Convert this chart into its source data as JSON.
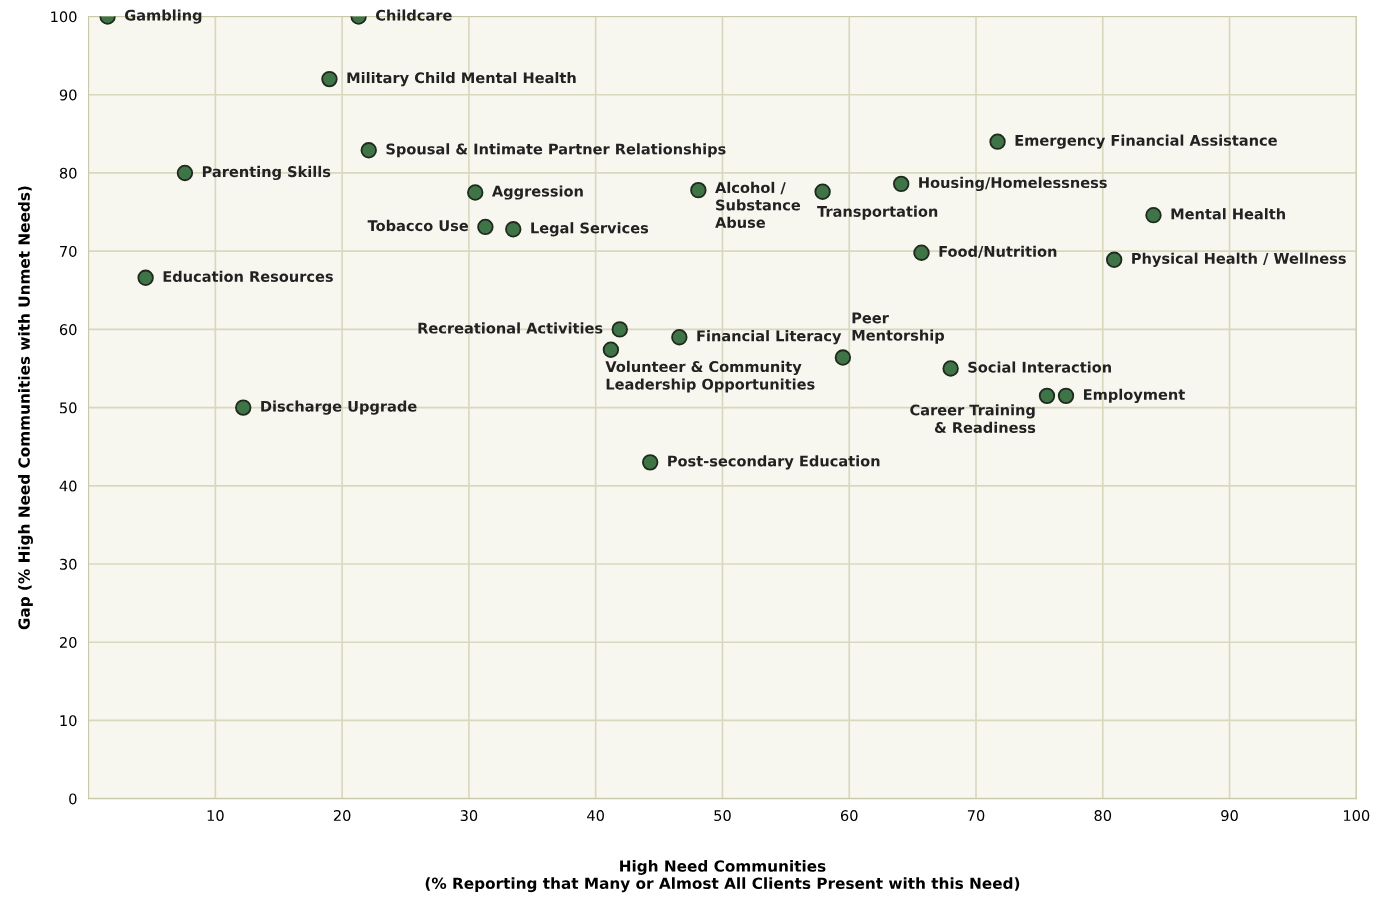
{
  "chart_data": {
    "type": "scatter",
    "xlabel": "High Need Communities\n(% Reporting that Many or Almost All Clients Present with this Need)",
    "ylabel": "Gap (% High Need Communities with Unmet Needs)",
    "x": [
      1.5,
      21.3,
      19.0,
      22.1,
      7.6,
      30.5,
      31.3,
      33.5,
      4.5,
      48.1,
      57.9,
      64.1,
      71.7,
      84.0,
      65.7,
      80.9,
      41.9,
      46.6,
      41.2,
      59.5,
      68.0,
      75.6,
      77.1,
      12.2,
      44.3
    ],
    "series": [
      {
        "color": "#3f7446",
        "values": [
          100,
          100,
          92,
          82.9,
          80,
          77.5,
          73.1,
          72.8,
          66.6,
          77.8,
          77.6,
          78.6,
          84,
          74.6,
          69.8,
          68.9,
          60,
          59,
          57.4,
          56.4,
          55,
          51.5,
          51.5,
          50,
          43
        ]
      }
    ],
    "annotations": [
      {
        "text": "Gambling",
        "x": 1.5,
        "y": 100
      },
      {
        "text": "Childcare",
        "x": 21.3,
        "y": 100
      },
      {
        "text": "Military Child Mental Health",
        "x": 19.0,
        "y": 92
      },
      {
        "text": "Spousal & Intimate Partner Relationships",
        "x": 22.1,
        "y": 82.9
      },
      {
        "text": "Parenting Skills",
        "x": 7.6,
        "y": 80
      },
      {
        "text": "Aggression",
        "x": 30.5,
        "y": 77.5
      },
      {
        "text": "Tobacco Use",
        "x": 31.3,
        "y": 73.1
      },
      {
        "text": "Legal Services",
        "x": 33.5,
        "y": 72.8
      },
      {
        "text": "Education Resources",
        "x": 4.5,
        "y": 66.6
      },
      {
        "text": "Alcohol /\nSubstance\nAbuse",
        "x": 48.1,
        "y": 77.8
      },
      {
        "text": "Transportation",
        "x": 57.9,
        "y": 77.6
      },
      {
        "text": "Housing/Homelessness",
        "x": 64.1,
        "y": 78.6
      },
      {
        "text": "Emergency Financial Assistance",
        "x": 71.7,
        "y": 84
      },
      {
        "text": "Mental Health",
        "x": 84.0,
        "y": 74.6
      },
      {
        "text": "Food/Nutrition",
        "x": 65.7,
        "y": 69.8
      },
      {
        "text": "Physical Health / Wellness",
        "x": 80.9,
        "y": 68.9
      },
      {
        "text": "Recreational Activities",
        "x": 41.9,
        "y": 60
      },
      {
        "text": "Financial Literacy",
        "x": 46.6,
        "y": 59
      },
      {
        "text": "Volunteer & Community\nLeadership Opportunities",
        "x": 41.2,
        "y": 57.4
      },
      {
        "text": "Peer\nMentorship",
        "x": 59.5,
        "y": 56.4
      },
      {
        "text": "Social Interaction",
        "x": 68.0,
        "y": 55
      },
      {
        "text": "Career Training\n& Readiness",
        "x": 75.6,
        "y": 51.5
      },
      {
        "text": "Employment",
        "x": 77.1,
        "y": 51.5
      },
      {
        "text": "Discharge Upgrade",
        "x": 12.2,
        "y": 50
      },
      {
        "text": "Post-secondary Education",
        "x": 44.3,
        "y": 43
      }
    ],
    "xlim": [
      0,
      100
    ],
    "xticks": [
      10,
      20,
      30,
      40,
      50,
      60,
      70,
      80,
      90,
      100
    ],
    "ylim": [
      0,
      100
    ],
    "yticks": [
      0,
      10,
      20,
      30,
      40,
      50,
      60,
      70,
      80,
      90,
      100
    ],
    "grid": true,
    "marker": "circle"
  }
}
